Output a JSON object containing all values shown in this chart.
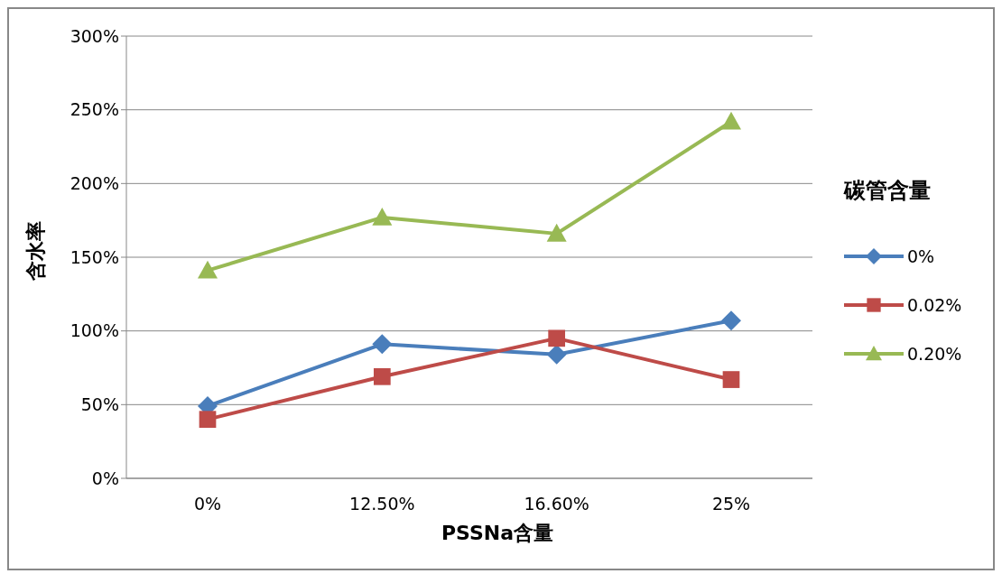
{
  "chart_data": {
    "type": "line",
    "xlabel": "PSSNa含量",
    "ylabel": "含水率",
    "legend_title": "碳管含量",
    "categories": [
      "0%",
      "12.50%",
      "16.60%",
      "25%"
    ],
    "series": [
      {
        "name": "0%",
        "color": "#4a7ebb",
        "marker": "diamond",
        "values": [
          49,
          91,
          84,
          107
        ]
      },
      {
        "name": "0.02%",
        "color": "#be4b48",
        "marker": "square",
        "values": [
          40,
          69,
          95,
          67
        ]
      },
      {
        "name": "0.20%",
        "color": "#98b954",
        "marker": "triangle",
        "values": [
          141,
          177,
          166,
          242
        ]
      }
    ],
    "ylim": [
      0,
      300
    ],
    "yticks": [
      {
        "value": 0,
        "label": "0%"
      },
      {
        "value": 50,
        "label": "50%"
      },
      {
        "value": 100,
        "label": "100%"
      },
      {
        "value": 150,
        "label": "150%"
      },
      {
        "value": 200,
        "label": "200%"
      },
      {
        "value": 250,
        "label": "250%"
      },
      {
        "value": 300,
        "label": "300%"
      }
    ],
    "grid": "y",
    "legend": "right"
  }
}
